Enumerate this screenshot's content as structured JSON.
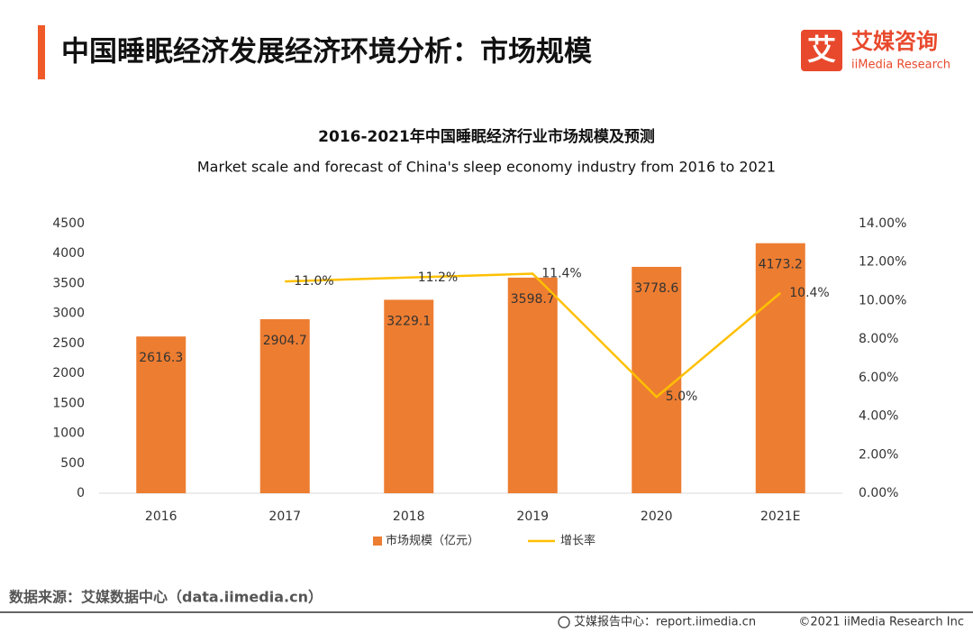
{
  "header": {
    "title": "中国睡眠经济发展经济环境分析：市场规模",
    "logo": {
      "mark": "艾",
      "name": "艾媒咨询",
      "name_en": "iiMedia Research"
    }
  },
  "chart_data": {
    "type": "bar",
    "title": "2016-2021年中国睡眠经济行业市场规模及预测",
    "subtitle": "Market scale and forecast of China's sleep economy industry from 2016 to 2021",
    "categories": [
      "2016",
      "2017",
      "2018",
      "2019",
      "2020",
      "2021E"
    ],
    "series": [
      {
        "name": "市场规模（亿元）",
        "color": "#ed7d31",
        "values": [
          2616.3,
          2904.7,
          3229.1,
          3598.7,
          3778.6,
          4173.2
        ]
      },
      {
        "name": "增长率",
        "type": "line",
        "axis": "y2",
        "color": "#ffc000",
        "values": [
          null,
          11.0,
          11.2,
          11.4,
          5.0,
          10.4
        ],
        "value_labels": [
          null,
          "11.0%",
          "11.2%",
          "11.4%",
          "5.0%",
          "10.4%"
        ]
      }
    ],
    "ylim": [
      0,
      4500
    ],
    "yticks": [
      0,
      500,
      1000,
      1500,
      2000,
      2500,
      3000,
      3500,
      4000,
      4500
    ],
    "y2lim": [
      0,
      14
    ],
    "y2ticks": [
      {
        "value": 0,
        "label": "0.00%"
      },
      {
        "value": 2,
        "label": "2.00%"
      },
      {
        "value": 4,
        "label": "4.00%"
      },
      {
        "value": 6,
        "label": "6.00%"
      },
      {
        "value": 8,
        "label": "8.00%"
      },
      {
        "value": 10,
        "label": "10.00%"
      },
      {
        "value": 12,
        "label": "12.00%"
      },
      {
        "value": 14,
        "label": "14.00%"
      }
    ],
    "grid": false,
    "legend": "bottom"
  },
  "source": "数据来源：艾媒数据中心（data.iimedia.cn）",
  "footer": {
    "report_center": "艾媒报告中心：report.iimedia.cn",
    "copyright": "©2021  iiMedia Research  Inc"
  }
}
